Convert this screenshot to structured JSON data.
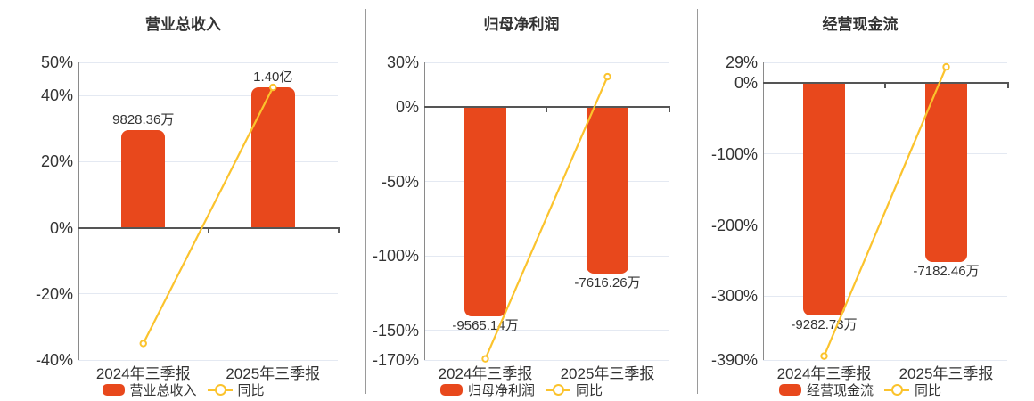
{
  "colors": {
    "bar": "#e8481c",
    "line": "#fbc32d",
    "marker_fill": "#ffffff",
    "zero_axis": "#555555",
    "y_axis_line": "#8a8a8a",
    "gridline": "#e4e9f2",
    "divider": "#9a9a9a",
    "text": "#333333"
  },
  "chart_data": [
    {
      "type": "bar",
      "title": "营业总收入",
      "categories": [
        "2024年三季报",
        "2025年三季报"
      ],
      "bar_series": {
        "name": "营业总收入",
        "labels": [
          "9828.36万",
          "1.40亿"
        ],
        "values_wan": [
          9828.36,
          14000
        ],
        "plotted_pct": [
          29.6,
          42.45
        ],
        "label_pos": "above"
      },
      "line_series": {
        "name": "同比",
        "values_pct": [
          -35.0,
          42.45
        ]
      },
      "y_axis": {
        "max": 50,
        "min": -40,
        "ticks": [
          {
            "label": "50%",
            "value": 50
          },
          {
            "label": "40%",
            "value": 40
          },
          {
            "label": "20%",
            "value": 20
          },
          {
            "label": "0%",
            "value": 0
          },
          {
            "label": "-20%",
            "value": -20
          },
          {
            "label": "-40%",
            "value": -40
          }
        ]
      },
      "legend_position": "bottom",
      "grid": true
    },
    {
      "type": "bar",
      "title": "归母净利润",
      "categories": [
        "2024年三季报",
        "2025年三季报"
      ],
      "bar_series": {
        "name": "归母净利润",
        "labels": [
          "-9565.14万",
          "-7616.26万"
        ],
        "values_wan": [
          -9565.14,
          -7616.26
        ],
        "plotted_pct": [
          -140.5,
          -111.9
        ],
        "label_pos": "below"
      },
      "line_series": {
        "name": "同比",
        "values_pct": [
          -169.2,
          20.38
        ]
      },
      "y_axis": {
        "max": 30,
        "min": -170,
        "ticks": [
          {
            "label": "30%",
            "value": 30
          },
          {
            "label": "0%",
            "value": 0
          },
          {
            "label": "-50%",
            "value": -50
          },
          {
            "label": "-100%",
            "value": -100
          },
          {
            "label": "-150%",
            "value": -150
          },
          {
            "label": "-170%",
            "value": -170
          }
        ]
      },
      "legend_position": "bottom",
      "grid": true
    },
    {
      "type": "bar",
      "title": "经营现金流",
      "categories": [
        "2024年三季报",
        "2025年三季报"
      ],
      "bar_series": {
        "name": "经营现金流",
        "labels": [
          "-9282.73万",
          "-7182.46万"
        ],
        "values_wan": [
          -9282.73,
          -7182.46
        ],
        "plotted_pct": [
          -327.2,
          -252.0
        ],
        "label_pos": "below"
      },
      "line_series": {
        "name": "同比",
        "values_pct": [
          -384.5,
          22.63
        ]
      },
      "y_axis": {
        "max": 29,
        "min": -390,
        "ticks": [
          {
            "label": "29%",
            "value": 29
          },
          {
            "label": "0%",
            "value": 0
          },
          {
            "label": "-100%",
            "value": -100
          },
          {
            "label": "-200%",
            "value": -200
          },
          {
            "label": "-300%",
            "value": -300
          },
          {
            "label": "-390%",
            "value": -390
          }
        ]
      },
      "legend_position": "bottom",
      "grid": true
    }
  ]
}
